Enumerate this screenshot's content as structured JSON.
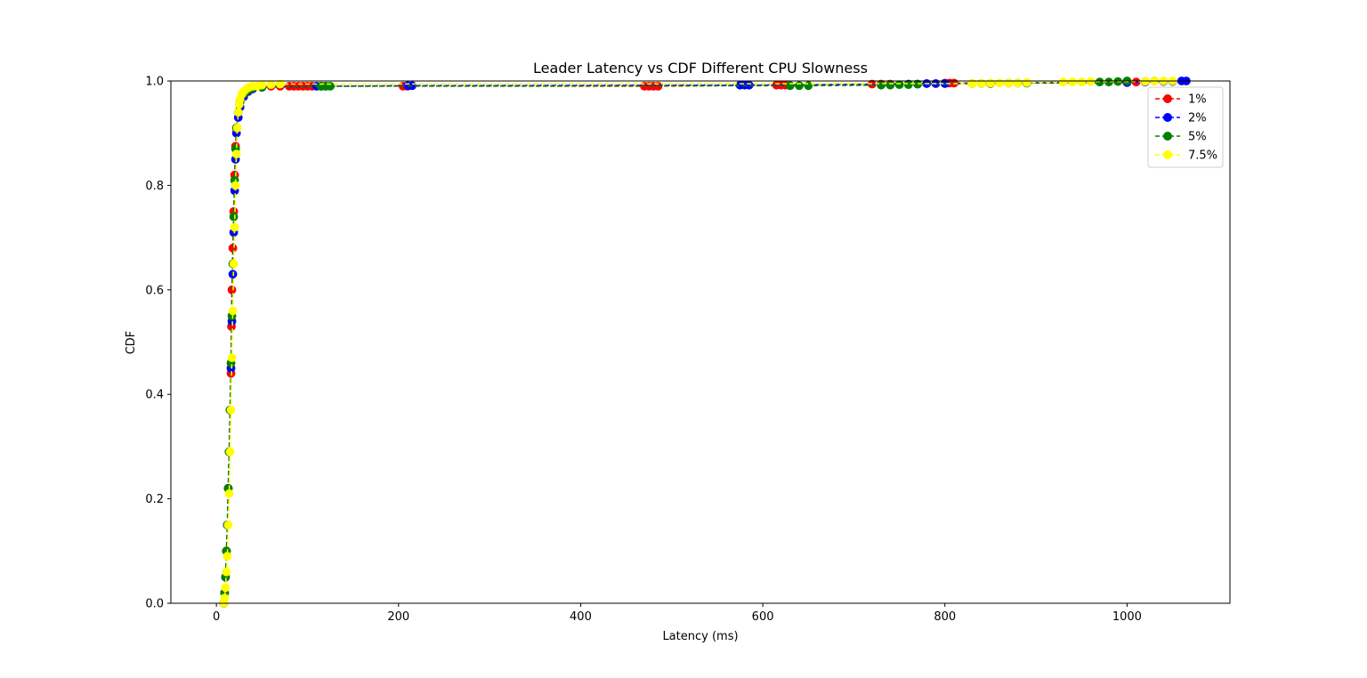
{
  "chart_data": {
    "type": "line",
    "title": "Leader Latency vs CDF Different CPU Slowness",
    "xlabel": "Latency (ms)",
    "ylabel": "CDF",
    "xlim": [
      -50,
      1113
    ],
    "ylim": [
      0,
      1
    ],
    "xticks": [
      0,
      200,
      400,
      600,
      800,
      1000
    ],
    "yticks": [
      0.0,
      0.2,
      0.4,
      0.6,
      0.8,
      1.0
    ],
    "xtick_labels": [
      "0",
      "200",
      "400",
      "600",
      "800",
      "1000"
    ],
    "ytick_labels": [
      "0.0",
      "0.2",
      "0.4",
      "0.6",
      "0.8",
      "1.0"
    ],
    "grid": false,
    "legend_position": "top-right",
    "line_style": "dashed with circle markers",
    "series": [
      {
        "name": "1%",
        "color": "#ff0000",
        "x": [
          8,
          9,
          10,
          11,
          12,
          13,
          14,
          15,
          16,
          16.5,
          17,
          18,
          19,
          20,
          21,
          22,
          24,
          26,
          30,
          35,
          40,
          50,
          60,
          70,
          80,
          85,
          90,
          95,
          100,
          105,
          205,
          210,
          470,
          475,
          480,
          485,
          615,
          620,
          625,
          720,
          730,
          740,
          800,
          805,
          810,
          1000,
          1010,
          1020,
          1030
        ],
        "y": [
          0.0,
          0.02,
          0.05,
          0.1,
          0.15,
          0.22,
          0.29,
          0.37,
          0.44,
          0.53,
          0.6,
          0.68,
          0.75,
          0.82,
          0.875,
          0.91,
          0.94,
          0.96,
          0.975,
          0.98,
          0.985,
          0.988,
          0.99,
          0.99,
          0.99,
          0.99,
          0.99,
          0.99,
          0.99,
          0.99,
          0.99,
          0.99,
          0.99,
          0.99,
          0.99,
          0.99,
          0.992,
          0.992,
          0.992,
          0.994,
          0.994,
          0.994,
          0.996,
          0.996,
          0.996,
          0.998,
          0.998,
          0.999,
          1.0
        ]
      },
      {
        "name": "2%",
        "color": "#0000ff",
        "x": [
          8,
          9,
          10,
          11,
          12,
          13,
          14,
          15,
          16,
          17,
          18,
          19,
          20,
          21,
          22,
          24,
          26,
          30,
          35,
          40,
          50,
          110,
          115,
          120,
          210,
          215,
          575,
          580,
          585,
          760,
          770,
          780,
          790,
          800,
          1000,
          1020,
          1040,
          1050,
          1060,
          1065
        ],
        "y": [
          0.0,
          0.02,
          0.05,
          0.1,
          0.15,
          0.22,
          0.29,
          0.37,
          0.45,
          0.54,
          0.63,
          0.71,
          0.79,
          0.85,
          0.9,
          0.93,
          0.95,
          0.97,
          0.98,
          0.985,
          0.988,
          0.99,
          0.99,
          0.99,
          0.991,
          0.991,
          0.992,
          0.992,
          0.992,
          0.994,
          0.994,
          0.995,
          0.995,
          0.995,
          0.997,
          0.998,
          0.999,
          0.999,
          1.0,
          1.0
        ]
      },
      {
        "name": "5%",
        "color": "#008000",
        "x": [
          8,
          9,
          10,
          11,
          12,
          13,
          14,
          15,
          16,
          17,
          18,
          19,
          20,
          21,
          22,
          24,
          26,
          30,
          35,
          40,
          50,
          115,
          120,
          125,
          630,
          640,
          650,
          730,
          740,
          750,
          760,
          770,
          830,
          840,
          850,
          870,
          880,
          890,
          970,
          980,
          990,
          1000
        ],
        "y": [
          0.0,
          0.02,
          0.05,
          0.1,
          0.15,
          0.22,
          0.29,
          0.37,
          0.46,
          0.55,
          0.65,
          0.74,
          0.81,
          0.87,
          0.91,
          0.94,
          0.96,
          0.975,
          0.982,
          0.986,
          0.988,
          0.99,
          0.99,
          0.99,
          0.991,
          0.991,
          0.991,
          0.992,
          0.992,
          0.993,
          0.993,
          0.994,
          0.995,
          0.995,
          0.995,
          0.996,
          0.996,
          0.996,
          0.998,
          0.998,
          0.999,
          1.0
        ]
      },
      {
        "name": "7.5%",
        "color": "#ffff00",
        "x": [
          8,
          9,
          10,
          11,
          12,
          13,
          14,
          15,
          16,
          17,
          18,
          19,
          20,
          21,
          22,
          23,
          24,
          25,
          26,
          28,
          30,
          33,
          36,
          40,
          45,
          50,
          60,
          70,
          830,
          840,
          850,
          860,
          870,
          880,
          890,
          930,
          940,
          950,
          960,
          1020,
          1030,
          1040,
          1050
        ],
        "y": [
          0.0,
          0.01,
          0.03,
          0.06,
          0.09,
          0.15,
          0.21,
          0.29,
          0.37,
          0.47,
          0.56,
          0.65,
          0.72,
          0.8,
          0.86,
          0.91,
          0.94,
          0.955,
          0.965,
          0.975,
          0.98,
          0.985,
          0.988,
          0.99,
          0.99,
          0.992,
          0.993,
          0.994,
          0.995,
          0.995,
          0.996,
          0.996,
          0.996,
          0.996,
          0.997,
          0.998,
          0.998,
          0.998,
          0.999,
          0.999,
          1.0,
          1.0,
          1.0
        ]
      }
    ]
  }
}
